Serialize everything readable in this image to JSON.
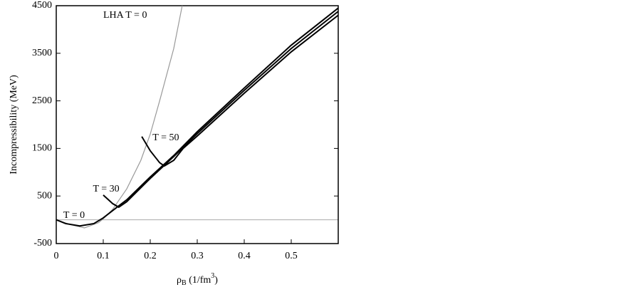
{
  "chart_data": {
    "type": "line",
    "y_label": "Incompressibility (MeV)",
    "x_label_parts": [
      "ρ",
      "B",
      " (1/fm",
      "3",
      ")"
    ],
    "xlim": [
      0,
      0.6
    ],
    "xticks": [
      0,
      0.1,
      0.2,
      0.3,
      0.4,
      0.5
    ],
    "ylim": [
      -500,
      4500
    ],
    "yticks": [
      -500,
      500,
      1500,
      2500,
      3500,
      4500
    ],
    "hline": 0,
    "hline_color": "#aaaaaa",
    "series": [
      {
        "color": "#999999",
        "width": 1.2,
        "x": [
          0,
          0.03,
          0.06,
          0.09,
          0.1,
          0.12,
          0.15,
          0.18,
          0.2,
          0.22,
          0.25,
          0.268
        ],
        "values": [
          0,
          -100,
          -170,
          -60,
          20,
          220,
          650,
          1250,
          1800,
          2500,
          3600,
          4500
        ]
      },
      {
        "color": "#000000",
        "width": 2,
        "x": [
          0,
          0.02,
          0.05,
          0.08,
          0.1,
          0.13,
          0.15,
          0.2,
          0.25,
          0.3,
          0.4,
          0.5,
          0.6
        ],
        "values": [
          0,
          -80,
          -130,
          -80,
          40,
          270,
          420,
          900,
          1350,
          1850,
          2770,
          3670,
          4450
        ]
      },
      {
        "color": "#000000",
        "width": 2,
        "x": [
          0.1,
          0.12,
          0.133,
          0.15,
          0.2,
          0.25,
          0.3,
          0.4,
          0.5,
          0.6
        ],
        "values": [
          520,
          340,
          265,
          380,
          870,
          1330,
          1810,
          2720,
          3600,
          4380
        ]
      },
      {
        "color": "#000000",
        "width": 2,
        "x": [
          0.182,
          0.2,
          0.22,
          0.23,
          0.25,
          0.27,
          0.3,
          0.4,
          0.5,
          0.6
        ],
        "values": [
          1750,
          1450,
          1200,
          1130,
          1250,
          1500,
          1760,
          2660,
          3530,
          4300
        ]
      }
    ],
    "annotations": [
      {
        "text": "LHA  T = 0",
        "x": 0.1,
        "y": 4290
      },
      {
        "text": "T = 50",
        "x": 0.205,
        "y": 1720
      },
      {
        "text": "T = 30",
        "x": 0.078,
        "y": 640
      },
      {
        "text": "T = 0",
        "x": 0.015,
        "y": 90
      }
    ]
  }
}
